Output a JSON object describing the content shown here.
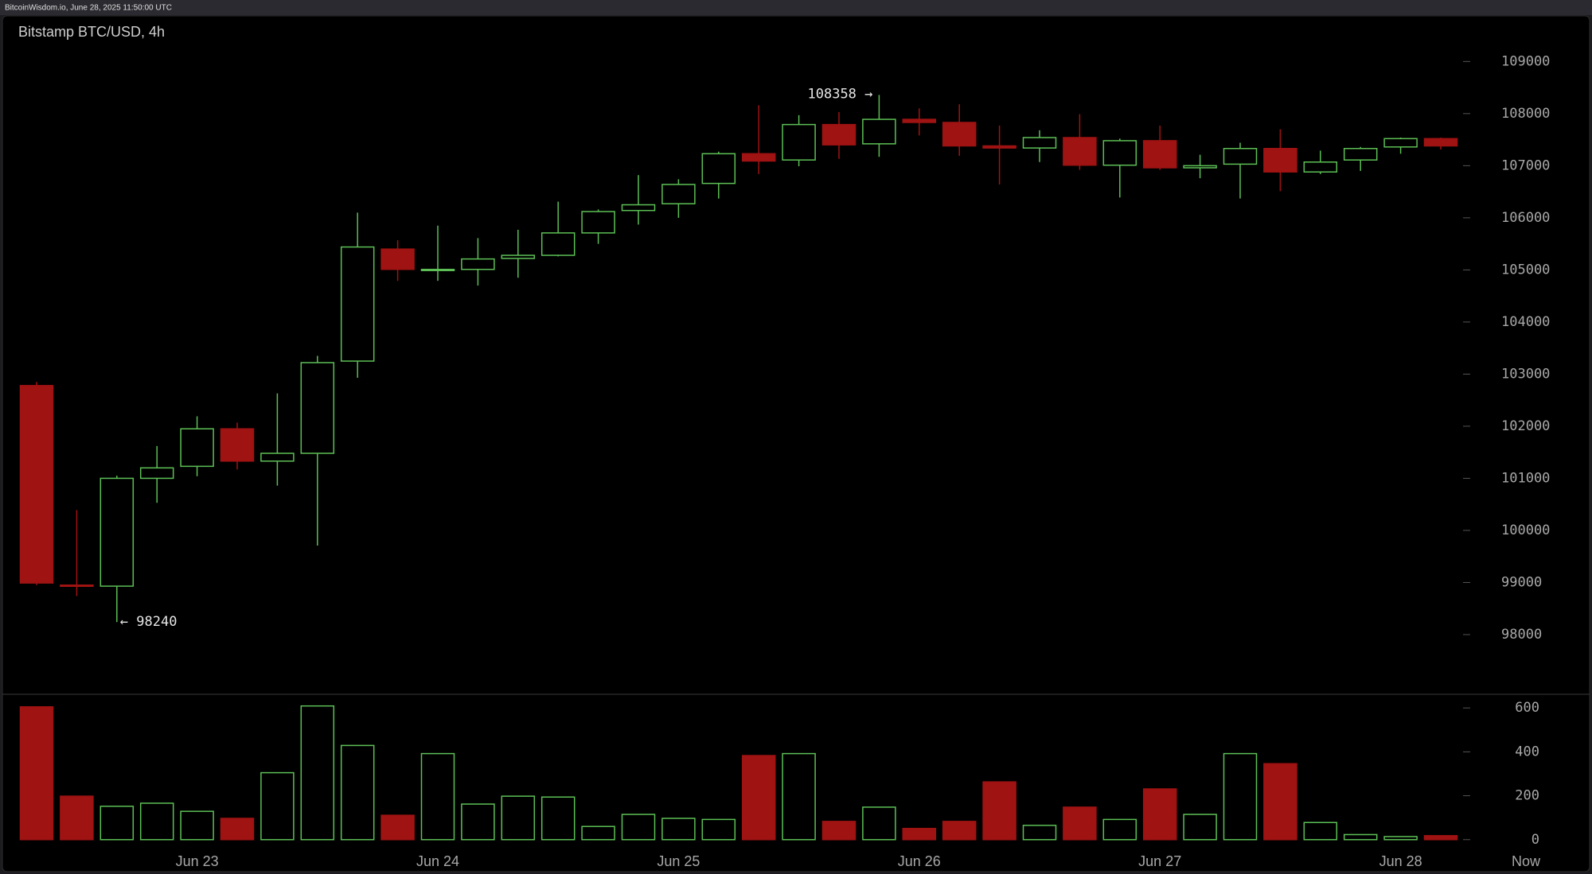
{
  "header": "BitcoinWisdom.io, June 28, 2025 11:50:00 UTC",
  "chart_data": {
    "type": "candlestick",
    "title": "Bitstamp BTC/USD, 4h",
    "categories": [
      null,
      null,
      null,
      null,
      "Jun 23",
      null,
      null,
      null,
      null,
      null,
      "Jun 24",
      null,
      null,
      null,
      null,
      null,
      "Jun 25",
      null,
      null,
      null,
      null,
      null,
      "Jun 26",
      null,
      null,
      null,
      null,
      null,
      "Jun 27",
      null,
      null,
      null,
      null,
      null,
      "Jun 28",
      null
    ],
    "now_label": "Now",
    "open": [
      102780,
      98950,
      98930,
      101000,
      101230,
      101950,
      101330,
      101480,
      103250,
      105400,
      104990,
      105010,
      105220,
      105280,
      105710,
      106140,
      106270,
      106660,
      107230,
      107110,
      107790,
      107420,
      107890,
      107830,
      107380,
      107340,
      107540,
      107010,
      107480,
      106960,
      107030,
      107330,
      106880,
      107110,
      107360,
      107520
    ],
    "high": [
      102850,
      100390,
      101050,
      101620,
      102190,
      102070,
      102630,
      103350,
      106100,
      105570,
      105850,
      105610,
      105770,
      106310,
      106160,
      106820,
      106740,
      107270,
      108160,
      107970,
      108030,
      108358,
      108100,
      108180,
      107770,
      107680,
      107990,
      107520,
      107770,
      107210,
      107440,
      107700,
      107290,
      107360,
      107540,
      107540
    ],
    "low": [
      98950,
      98740,
      98240,
      100530,
      101040,
      101170,
      100860,
      99710,
      102930,
      104790,
      104790,
      104700,
      104850,
      105260,
      105500,
      105870,
      106000,
      106370,
      106840,
      106990,
      107130,
      107170,
      107580,
      107190,
      106640,
      107070,
      106920,
      106390,
      106920,
      106760,
      106370,
      106510,
      106840,
      106900,
      107230,
      107310
    ],
    "close": [
      98990,
      98930,
      101000,
      101200,
      101950,
      101330,
      101480,
      103220,
      105440,
      105010,
      105010,
      105210,
      105280,
      105710,
      106120,
      106250,
      106640,
      107230,
      107090,
      107790,
      107400,
      107890,
      107830,
      107380,
      107340,
      107540,
      107010,
      107480,
      106960,
      107000,
      107330,
      106880,
      107070,
      107330,
      107520,
      107380
    ],
    "volume": [
      605,
      198,
      152,
      166,
      129,
      97,
      305,
      609,
      429,
      111,
      392,
      162,
      198,
      194,
      60,
      115,
      97,
      92,
      383,
      392,
      83,
      148,
      51,
      83,
      263,
      65,
      148,
      92,
      231,
      115,
      392,
      346,
      78,
      23,
      14,
      18
    ],
    "ylim": [
      96870,
      109860
    ],
    "yticks": [
      98000,
      99000,
      100000,
      101000,
      102000,
      103000,
      104000,
      105000,
      106000,
      107000,
      108000,
      109000
    ],
    "y2lim": [
      -37,
      655
    ],
    "y2ticks": [
      0,
      200,
      400,
      600
    ],
    "up_color": "#5cbf55",
    "down_color": "#a01313",
    "high_label": "108358 →",
    "low_label": "← 98240"
  }
}
